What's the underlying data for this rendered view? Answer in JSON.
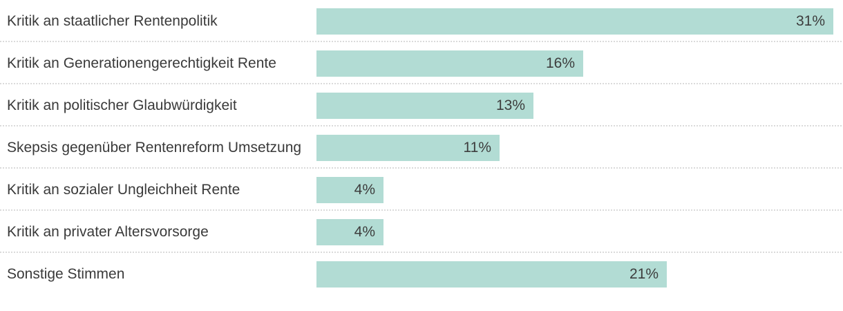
{
  "chart_data": {
    "type": "bar",
    "orientation": "horizontal",
    "title": "",
    "xlabel": "",
    "ylabel": "",
    "grid": false,
    "legend": false,
    "xlim": [
      0,
      31
    ],
    "categories": [
      "Kritik an staatlicher Rentenpolitik",
      "Kritik an Generationengerechtigkeit Rente",
      "Kritik an politischer Glaubwürdigkeit",
      "Skepsis gegenüber Rentenreform Umsetzung",
      "Kritik an sozialer Ungleichheit Rente",
      "Kritik an privater Altersvorsorge",
      "Sonstige Stimmen"
    ],
    "values": [
      31,
      16,
      13,
      11,
      4,
      4,
      21
    ],
    "value_labels": [
      "31%",
      "16%",
      "13%",
      "11%",
      "4%",
      "4%",
      "21%"
    ],
    "unit": "%",
    "colors": {
      "bar_fill": "#b2dcd4",
      "label_text": "#3a3a3a",
      "value_text": "#3d3d3d",
      "divider": "#dadada",
      "background": "#ffffff"
    }
  }
}
